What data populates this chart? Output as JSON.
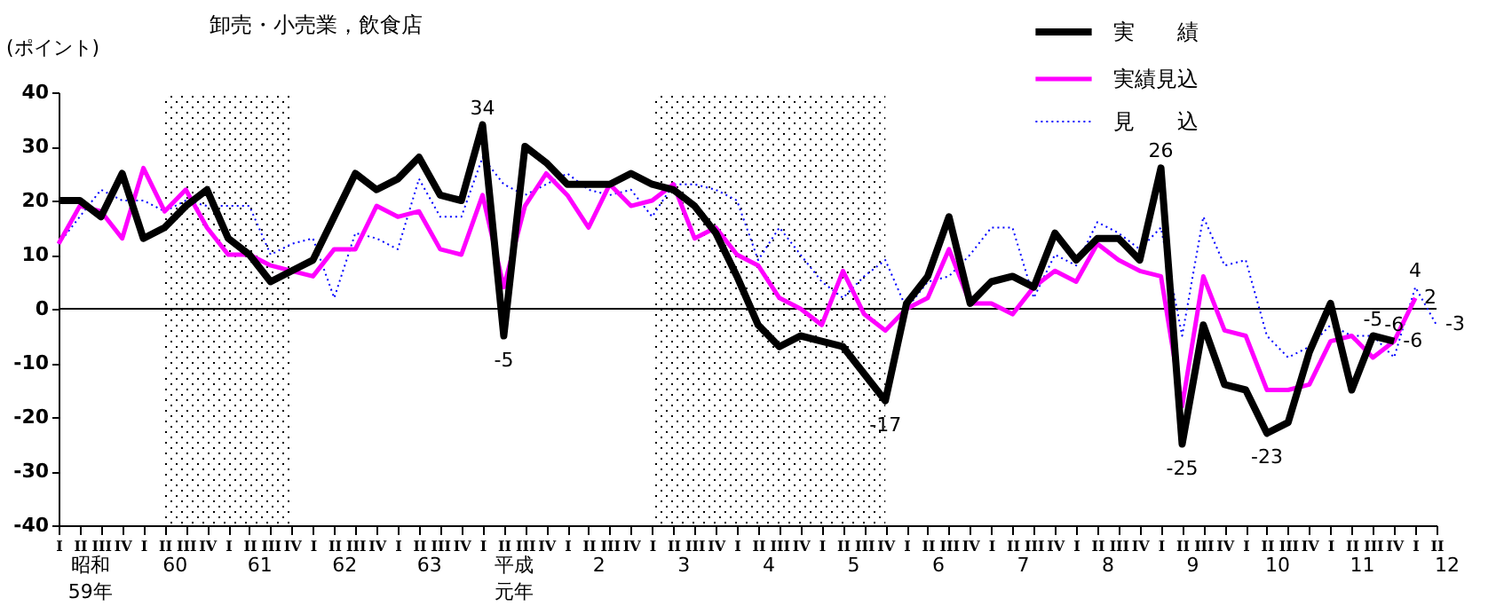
{
  "chart_data": {
    "type": "line",
    "title": "卸売・小売業，飲食店",
    "ylabel": "(ポイント)",
    "categories": [
      "I",
      "II",
      "III",
      "IV",
      "I",
      "II",
      "III",
      "IV",
      "I",
      "II",
      "III",
      "IV",
      "I",
      "II",
      "III",
      "IV",
      "I",
      "II",
      "III",
      "IV",
      "I",
      "II",
      "III",
      "IV",
      "I",
      "II",
      "III",
      "IV",
      "I",
      "II",
      "III",
      "IV",
      "I",
      "II",
      "III",
      "IV",
      "I",
      "II",
      "III",
      "IV",
      "I",
      "II",
      "III",
      "IV",
      "I",
      "II",
      "III",
      "IV",
      "I",
      "II",
      "III",
      "IV",
      "I",
      "II",
      "III",
      "IV",
      "I",
      "II",
      "III",
      "IV",
      "I",
      "II",
      "III",
      "IV",
      "I",
      "II"
    ],
    "series": [
      {
        "name": "実　　績",
        "color": "#000000",
        "line_style": "solid",
        "values": [
          20,
          20,
          17,
          25,
          13,
          15,
          19,
          22,
          13,
          10,
          5,
          7,
          9,
          17,
          25,
          22,
          24,
          28,
          21,
          20,
          34,
          -5,
          30,
          27,
          23,
          23,
          23,
          25,
          23,
          22,
          19,
          14,
          6,
          -3,
          -7,
          -5,
          -6,
          -7,
          -12,
          -17,
          1,
          6,
          17,
          1,
          5,
          6,
          4,
          14,
          9,
          13,
          13,
          9,
          26,
          -25,
          -3,
          -14,
          -15,
          -23,
          -21,
          -8,
          1,
          -15,
          -5,
          -6,
          null,
          null
        ],
        "value_labels": [
          null,
          null,
          null,
          null,
          null,
          null,
          null,
          null,
          null,
          null,
          null,
          null,
          null,
          null,
          null,
          null,
          null,
          null,
          null,
          null,
          "34",
          "-5",
          null,
          null,
          null,
          null,
          null,
          null,
          null,
          null,
          null,
          null,
          null,
          null,
          null,
          null,
          null,
          null,
          null,
          "-17",
          null,
          null,
          null,
          null,
          null,
          null,
          null,
          null,
          null,
          null,
          null,
          null,
          "26",
          "-25",
          null,
          null,
          null,
          "-23",
          null,
          null,
          null,
          null,
          "-5",
          "-6",
          null,
          null
        ]
      },
      {
        "name": "実績見込",
        "color": "#ff00ff",
        "line_style": "solid",
        "values": [
          12,
          19,
          18,
          13,
          26,
          18,
          22,
          15,
          10,
          10,
          8,
          7,
          6,
          11,
          11,
          19,
          17,
          18,
          11,
          10,
          21,
          4,
          19,
          25,
          21,
          15,
          23,
          19,
          20,
          23,
          13,
          15,
          10,
          8,
          2,
          0,
          -3,
          7,
          -1,
          -4,
          0,
          2,
          11,
          1,
          1,
          -1,
          4,
          7,
          5,
          12,
          9,
          7,
          6,
          -18,
          6,
          -4,
          -5,
          -15,
          -15,
          -14,
          -6,
          -5,
          -9,
          -6,
          2,
          null
        ],
        "value_labels": [
          null,
          null,
          null,
          null,
          null,
          null,
          null,
          null,
          null,
          null,
          null,
          null,
          null,
          null,
          null,
          null,
          null,
          null,
          null,
          null,
          null,
          null,
          null,
          null,
          null,
          null,
          null,
          null,
          null,
          null,
          null,
          null,
          null,
          null,
          null,
          null,
          null,
          null,
          null,
          null,
          null,
          null,
          null,
          null,
          null,
          null,
          null,
          null,
          null,
          null,
          null,
          null,
          null,
          null,
          null,
          null,
          null,
          null,
          null,
          null,
          null,
          null,
          null,
          "-6",
          "2",
          null
        ]
      },
      {
        "name": "見　　込",
        "color": "#0000ff",
        "line_style": "dotted",
        "values": [
          12,
          17,
          22,
          20,
          20,
          18,
          20,
          19,
          19,
          19,
          10,
          12,
          13,
          2,
          14,
          13,
          11,
          24,
          17,
          17,
          28,
          23,
          21,
          23,
          25,
          22,
          21,
          22,
          17,
          23,
          23,
          22,
          20,
          9,
          15,
          10,
          5,
          2,
          6,
          9,
          0,
          5,
          6,
          10,
          15,
          15,
          2,
          10,
          8,
          16,
          14,
          11,
          15,
          -5,
          17,
          8,
          9,
          -5,
          -9,
          -7,
          -3,
          -5,
          -5,
          -9,
          4,
          -3
        ],
        "value_labels": [
          null,
          null,
          null,
          null,
          null,
          null,
          null,
          null,
          null,
          null,
          null,
          null,
          null,
          null,
          null,
          null,
          null,
          null,
          null,
          null,
          null,
          null,
          null,
          null,
          null,
          null,
          null,
          null,
          null,
          null,
          null,
          null,
          null,
          null,
          null,
          null,
          null,
          null,
          null,
          null,
          null,
          null,
          null,
          null,
          null,
          null,
          null,
          null,
          null,
          null,
          null,
          null,
          null,
          null,
          null,
          null,
          null,
          null,
          null,
          null,
          null,
          null,
          null,
          null,
          "4",
          "-3"
        ]
      }
    ],
    "ylim": [
      -40,
      40
    ],
    "yticks": [
      -40,
      -30,
      -20,
      -10,
      0,
      10,
      20,
      30,
      40
    ],
    "ref_lines": [
      {
        "axis": "y",
        "value": 0,
        "color": "#000000"
      }
    ],
    "annotations": [
      "昭和59年",
      "60",
      "61",
      "62",
      "63",
      "平成元年",
      "2",
      "3",
      "4",
      "5",
      "6",
      "7",
      "8",
      "9",
      "10",
      "11",
      "12"
    ],
    "grid": false,
    "legend": "top right",
    "marker": "none"
  }
}
